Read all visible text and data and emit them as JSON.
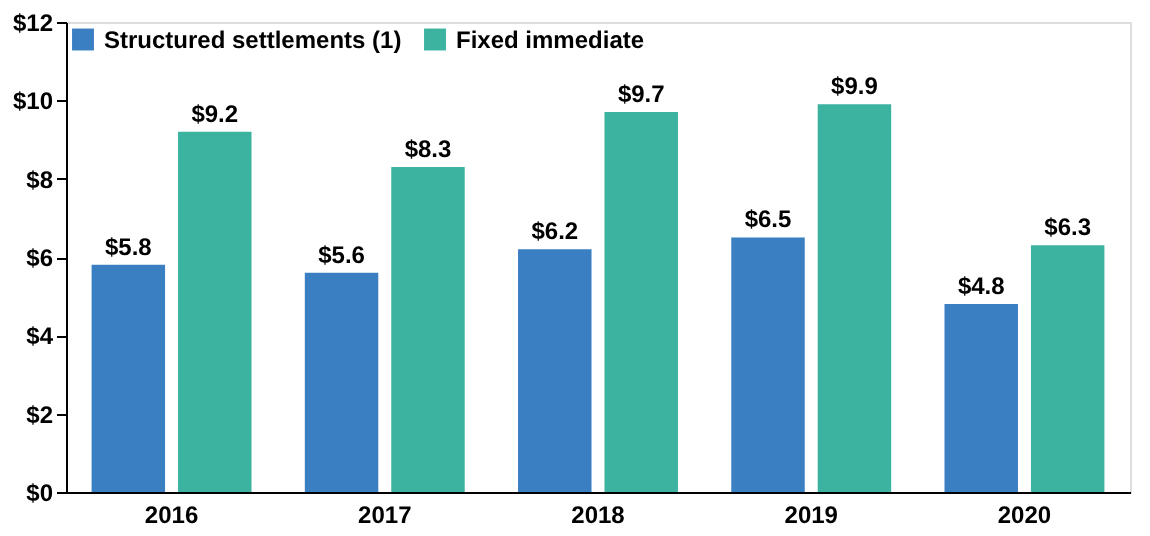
{
  "chart_data": {
    "type": "bar",
    "categories": [
      "2016",
      "2017",
      "2018",
      "2019",
      "2020"
    ],
    "series": [
      {
        "name": "Structured settlements (1)",
        "color": "#3a7fc1",
        "values": [
          5.8,
          5.6,
          6.2,
          6.5,
          4.8
        ],
        "value_labels": [
          "$5.8",
          "$5.6",
          "$6.2",
          "$6.5",
          "$4.8"
        ]
      },
      {
        "name": "Fixed immediate",
        "color": "#3bb3a0",
        "values": [
          9.2,
          8.3,
          9.7,
          9.9,
          6.3
        ],
        "value_labels": [
          "$9.2",
          "$8.3",
          "$9.7",
          "$9.9",
          "$6.3"
        ]
      }
    ],
    "ylim": [
      0,
      12
    ],
    "yticks": [
      {
        "value": 0,
        "label": "$0"
      },
      {
        "value": 2,
        "label": "$2"
      },
      {
        "value": 4,
        "label": "$4"
      },
      {
        "value": 6,
        "label": "$6"
      },
      {
        "value": 8,
        "label": "$8"
      },
      {
        "value": 10,
        "label": "$10"
      },
      {
        "value": 12,
        "label": "$12"
      }
    ],
    "grid": false,
    "legend": "top left"
  }
}
